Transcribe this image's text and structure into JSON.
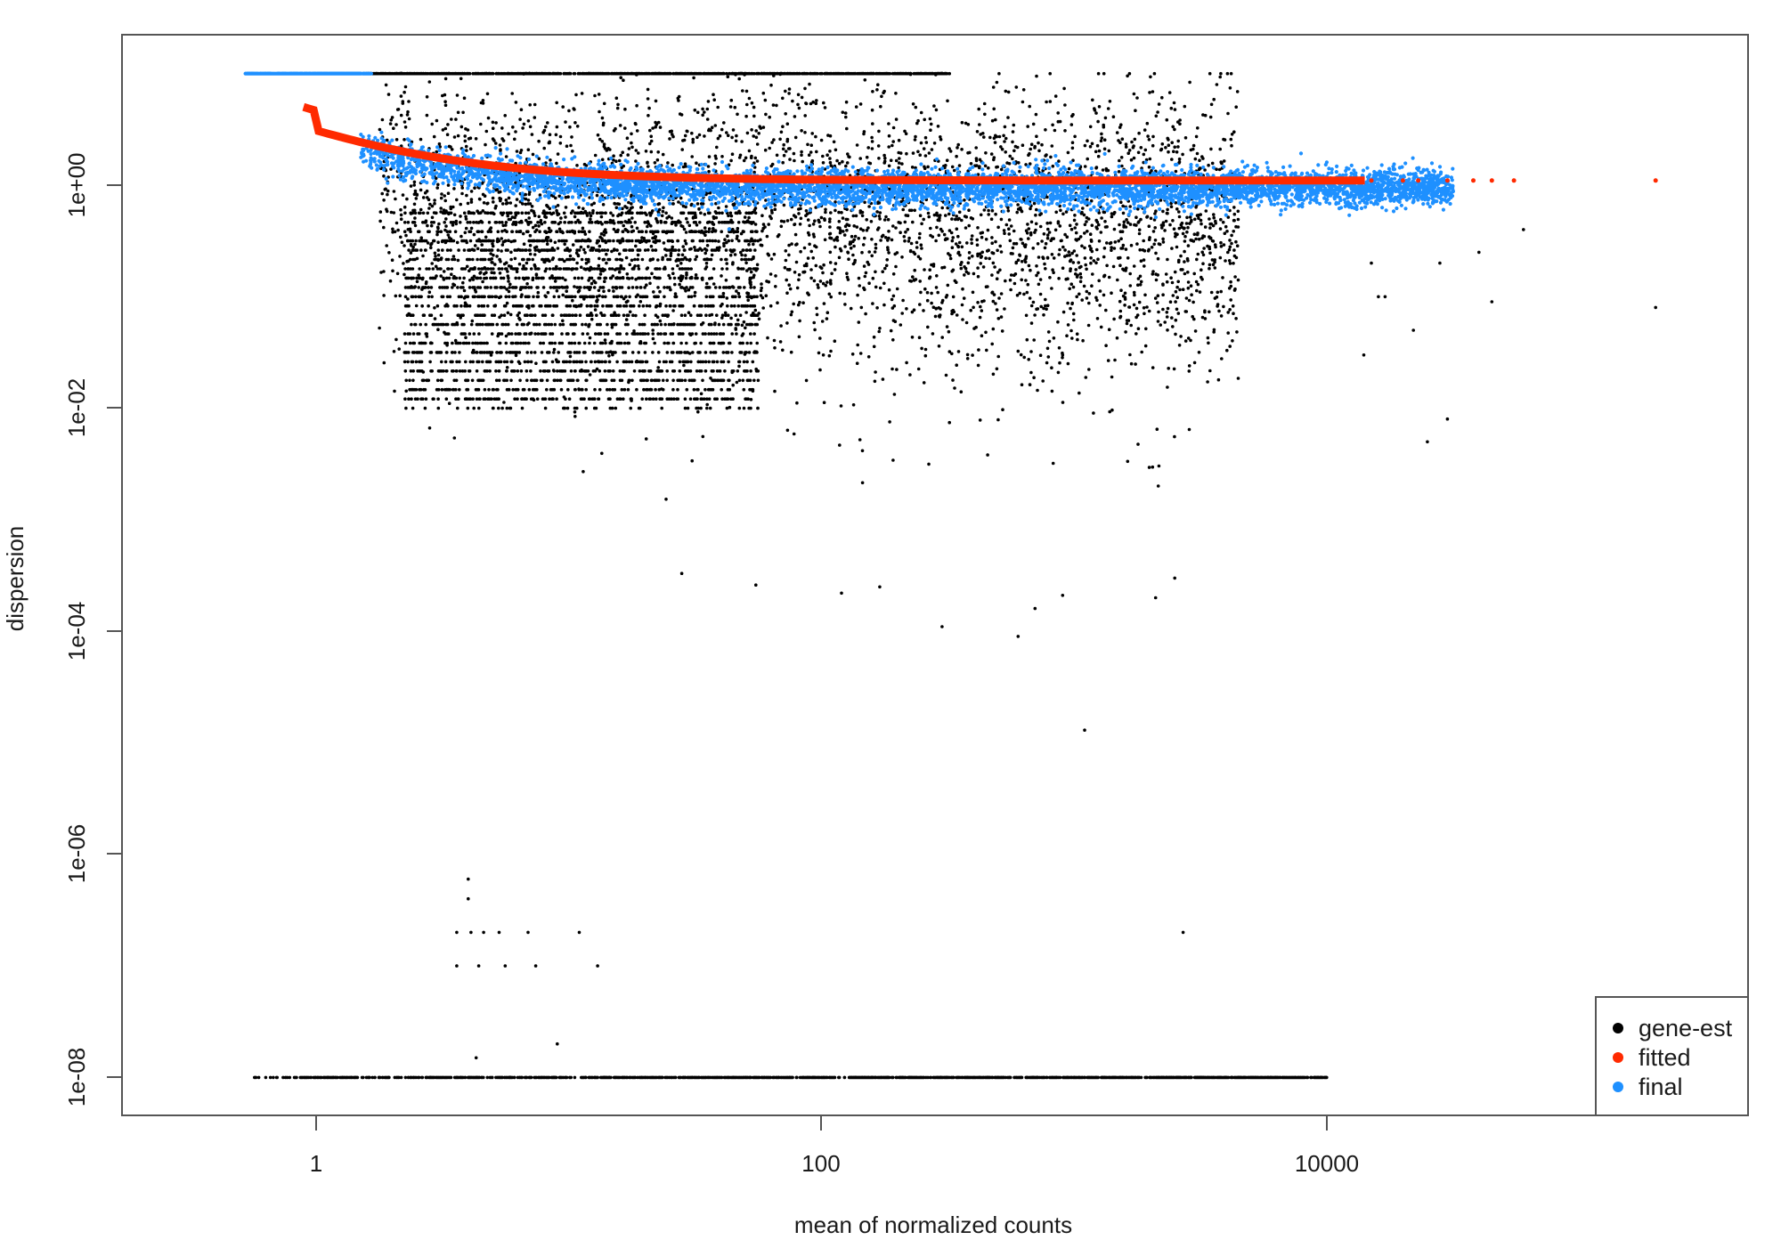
{
  "chart_data": {
    "type": "scatter",
    "title": "",
    "xlabel": "mean of normalized counts",
    "ylabel": "dispersion",
    "x_scale": "log10",
    "y_scale": "log10",
    "xlim": [
      0.3,
      480000
    ],
    "ylim": [
      2.5e-09,
      16
    ],
    "x_ticks": [
      {
        "value": 1,
        "label": "1"
      },
      {
        "value": 100,
        "label": "100"
      },
      {
        "value": 10000,
        "label": "10000"
      }
    ],
    "y_ticks": [
      {
        "value": 1e-08,
        "label": "1e-08"
      },
      {
        "value": 1e-06,
        "label": "1e-06"
      },
      {
        "value": 0.0001,
        "label": "1e-04"
      },
      {
        "value": 0.01,
        "label": "1e-02"
      },
      {
        "value": 1,
        "label": "1e+00"
      }
    ],
    "grid": false,
    "legend_position": "bottom-right",
    "series": [
      {
        "name": "gene-est",
        "color": "#000000",
        "description_points": [
          [
            0.5,
            1e-08
          ],
          [
            1,
            1e-08
          ],
          [
            10,
            1e-08
          ],
          [
            100,
            1e-08
          ],
          [
            1000,
            1e-08
          ],
          [
            12000,
            1e-08
          ],
          [
            4,
            6e-07
          ],
          [
            4,
            2e-07
          ],
          [
            5,
            2e-07
          ],
          [
            7,
            2e-07
          ],
          [
            13,
            1e-07
          ],
          [
            9,
            2e-08
          ],
          [
            5,
            1.5e-08
          ],
          [
            2700,
            2e-07
          ],
          [
            1100,
            1.3e-05
          ],
          [
            1.2,
            8
          ],
          [
            1000,
            8
          ],
          [
            3,
            0.15
          ],
          [
            200,
            0.0003
          ],
          [
            650,
            0.00015
          ],
          [
            200000.0,
            0.08
          ],
          [
            40000,
            0.3
          ],
          [
            30000,
            0.008
          ]
        ]
      },
      {
        "name": "fitted",
        "color": "#ff2a00",
        "asymptote": 1.1,
        "cap_x": 1,
        "cap_y": 15
      },
      {
        "name": "final",
        "color": "#1e90ff",
        "cap": 10,
        "floor": 0.95
      }
    ]
  }
}
